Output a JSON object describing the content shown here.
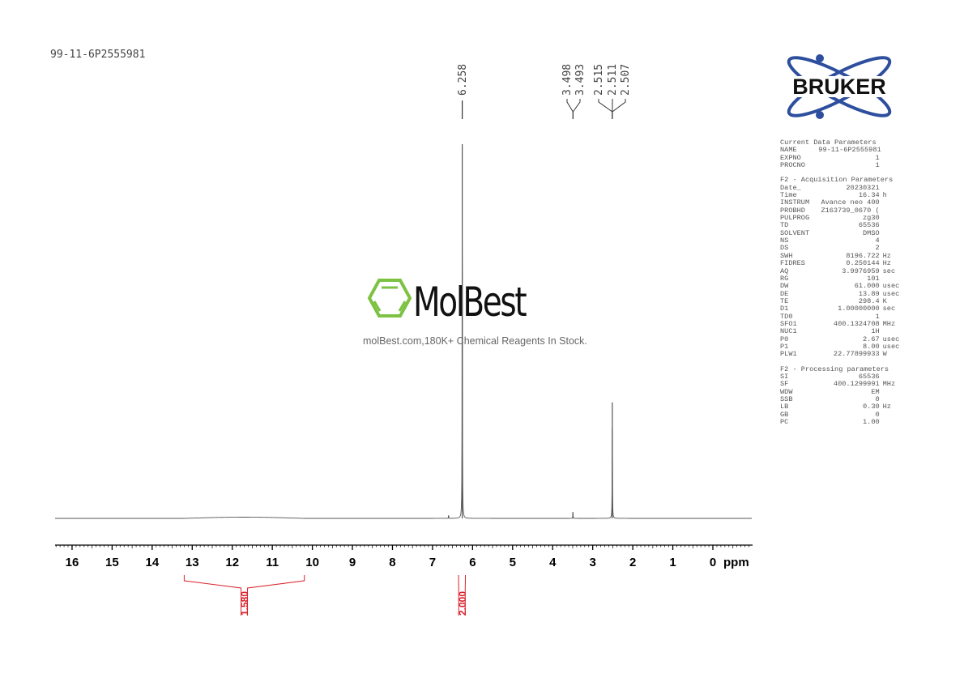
{
  "header": {
    "title": "99-11-6P2555981"
  },
  "logo": {
    "text": "BRUKER",
    "colors": {
      "ring": "#2e4e9e",
      "text": "#111111"
    }
  },
  "watermark": {
    "name": "MolBest",
    "tagline": "molBest.com,180K+ Chemical Reagents In Stock.",
    "color": "#7dc242"
  },
  "params": {
    "sections": [
      {
        "title": "Current Data Parameters",
        "rows": [
          [
            "NAME",
            "99-11-6P2555981",
            ""
          ],
          [
            "EXPNO",
            "1",
            ""
          ],
          [
            "PROCNO",
            "1",
            ""
          ]
        ]
      },
      {
        "title": "F2 - Acquisition Parameters",
        "rows": [
          [
            "Date_",
            "20230321",
            ""
          ],
          [
            "Time",
            "16.34",
            "h"
          ],
          [
            "INSTRUM",
            "Avance neo 400",
            ""
          ],
          [
            "PROBHD",
            "Z163739_0670 (",
            ""
          ],
          [
            "PULPROG",
            "zg30",
            ""
          ],
          [
            "TD",
            "65536",
            ""
          ],
          [
            "SOLVENT",
            "DMSO",
            ""
          ],
          [
            "NS",
            "4",
            ""
          ],
          [
            "DS",
            "2",
            ""
          ],
          [
            "SWH",
            "8196.722",
            "Hz"
          ],
          [
            "FIDRES",
            "0.250144",
            "Hz"
          ],
          [
            "AQ",
            "3.9976959",
            "sec"
          ],
          [
            "RG",
            "101",
            ""
          ],
          [
            "DW",
            "61.000",
            "usec"
          ],
          [
            "DE",
            "13.89",
            "usec"
          ],
          [
            "TE",
            "298.4",
            "K"
          ],
          [
            "D1",
            "1.00000000",
            "sec"
          ],
          [
            "TD0",
            "1",
            ""
          ],
          [
            "SFO1",
            "400.1324708",
            "MHz"
          ],
          [
            "NUC1",
            "1H",
            ""
          ],
          [
            "P0",
            "2.67",
            "usec"
          ],
          [
            "P1",
            "8.00",
            "usec"
          ],
          [
            "PLW1",
            "22.77899933",
            "W"
          ]
        ]
      },
      {
        "title": "F2 - Processing parameters",
        "rows": [
          [
            "SI",
            "65536",
            ""
          ],
          [
            "SF",
            "400.1299991",
            "MHz"
          ],
          [
            "WDW",
            "EM",
            ""
          ],
          [
            "SSB",
            "0",
            ""
          ],
          [
            "LB",
            "0.30",
            "Hz"
          ],
          [
            "GB",
            "0",
            ""
          ],
          [
            "PC",
            "1.00",
            ""
          ]
        ]
      }
    ]
  },
  "chart_data": {
    "type": "line",
    "xlabel": "ppm",
    "xlim": [
      16.4,
      -0.9
    ],
    "x_reversed": true,
    "xticks": [
      16,
      15,
      14,
      13,
      12,
      11,
      10,
      9,
      8,
      7,
      6,
      5,
      4,
      3,
      2,
      1,
      0
    ],
    "grid": false,
    "peaks": [
      {
        "ppm": 6.258,
        "intensity": 1.0
      },
      {
        "ppm": 2.511,
        "intensity": 0.31
      },
      {
        "ppm": 3.495,
        "intensity": 0.017
      },
      {
        "ppm": 6.6,
        "intensity": 0.008
      }
    ],
    "peak_labels": {
      "groups": [
        {
          "labels": [
            "6.258"
          ],
          "ppm": [
            6.258
          ]
        },
        {
          "labels": [
            "3.498",
            "3.493"
          ],
          "ppm": [
            3.498,
            3.493
          ]
        },
        {
          "labels": [
            "2.515",
            "2.511",
            "2.507"
          ],
          "ppm": [
            2.515,
            2.511,
            2.507
          ]
        }
      ]
    },
    "integrals": [
      {
        "from": 13.2,
        "to": 10.2,
        "value": "1.580"
      },
      {
        "from": 6.35,
        "to": 6.18,
        "value": "2.000"
      }
    ],
    "colors": {
      "spectrum": "#555555",
      "integral": "#d9232d",
      "axis": "#000000"
    }
  }
}
